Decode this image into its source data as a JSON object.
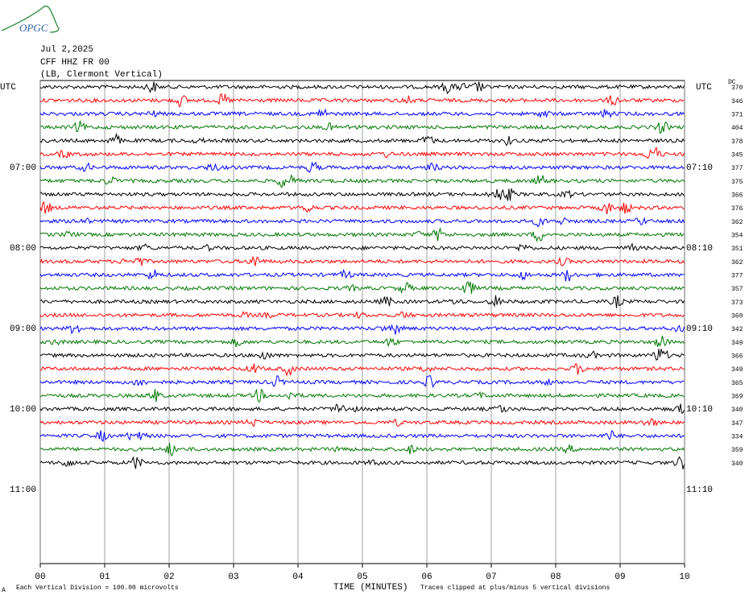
{
  "logo": "OPGC",
  "header": {
    "date": "Jul 2,2025",
    "station": "CFF HHZ FR 00",
    "location": "(LB, Clermont Vertical)"
  },
  "left_labels": [
    "UTC",
    "07:00",
    "08:00",
    "09:00",
    "10:00",
    "11:00"
  ],
  "right_labels": [
    "UTC",
    "07:10",
    "08:10",
    "09:10",
    "10:10",
    "11:10"
  ],
  "dc_header": "DC",
  "dc_values": [
    "370",
    "346",
    "371",
    "404",
    "378",
    "345",
    "377",
    "375",
    "366",
    "376",
    "362",
    "354",
    "351",
    "362",
    "377",
    "357",
    "373",
    "360",
    "342",
    "349",
    "366",
    "349",
    "365",
    "369",
    "340",
    "347",
    "334",
    "359",
    "340"
  ],
  "x_ticks": [
    "00",
    "01",
    "02",
    "03",
    "04",
    "05",
    "06",
    "07",
    "08",
    "09",
    "10"
  ],
  "footer": {
    "mark": "A",
    "scale": "Each Vertical Division =  100.00 microvolts",
    "axis_title": "TIME (MINUTES)",
    "clip": "Traces clipped at plus/minus 5 vertical divisions"
  },
  "trace_colors": [
    "#000000",
    "#ff0000",
    "#0000ff",
    "#007700"
  ]
}
